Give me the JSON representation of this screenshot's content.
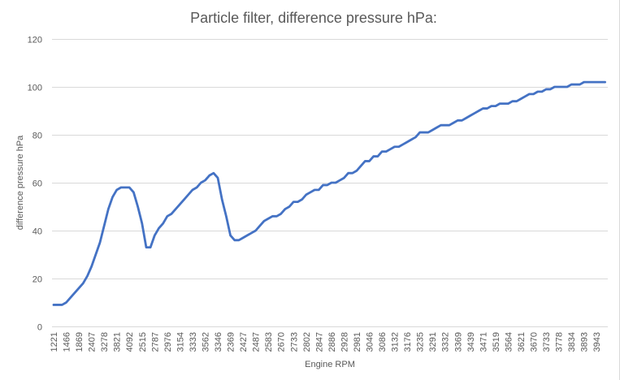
{
  "chart_data": {
    "type": "line",
    "title": "Particle filter, difference pressure hPa:",
    "xlabel": "Engine RPM",
    "ylabel": "difference pressure hPa",
    "ylim": [
      0,
      120
    ],
    "y_ticks": [
      0,
      20,
      40,
      60,
      80,
      100,
      120
    ],
    "grid": true,
    "legend": "none",
    "x_tick_labels": [
      "1221",
      "1466",
      "1869",
      "2407",
      "3278",
      "3821",
      "4092",
      "2515",
      "2787",
      "2976",
      "3154",
      "3333",
      "3562",
      "3346",
      "2369",
      "2427",
      "2487",
      "2583",
      "2670",
      "2733",
      "2802",
      "2847",
      "2886",
      "2928",
      "2981",
      "3046",
      "3086",
      "3132",
      "3176",
      "3235",
      "3291",
      "3332",
      "3369",
      "3439",
      "3471",
      "3519",
      "3564",
      "3621",
      "3670",
      "3733",
      "3778",
      "3834",
      "3893",
      "3943"
    ],
    "x_tick_every": 3,
    "series": [
      {
        "name": "difference pressure hPa",
        "color": "#4472c4",
        "values": [
          9,
          9,
          9,
          10,
          12,
          14,
          16,
          18,
          21,
          25,
          30,
          35,
          42,
          49,
          54,
          57,
          58,
          58,
          58,
          56,
          50,
          43,
          33,
          33,
          38,
          41,
          43,
          46,
          47,
          49,
          51,
          53,
          55,
          57,
          58,
          60,
          61,
          63,
          64,
          62,
          53,
          46,
          38,
          36,
          36,
          37,
          38,
          39,
          40,
          42,
          44,
          45,
          46,
          46,
          47,
          49,
          50,
          52,
          52,
          53,
          55,
          56,
          57,
          57,
          59,
          59,
          60,
          60,
          61,
          62,
          64,
          64,
          65,
          67,
          69,
          69,
          71,
          71,
          73,
          73,
          74,
          75,
          75,
          76,
          77,
          78,
          79,
          81,
          81,
          81,
          82,
          83,
          84,
          84,
          84,
          85,
          86,
          86,
          87,
          88,
          89,
          90,
          91,
          91,
          92,
          92,
          93,
          93,
          93,
          94,
          94,
          95,
          96,
          97,
          97,
          98,
          98,
          99,
          99,
          100,
          100,
          100,
          100,
          101,
          101,
          101,
          102,
          102,
          102,
          102,
          102,
          102
        ]
      }
    ]
  }
}
